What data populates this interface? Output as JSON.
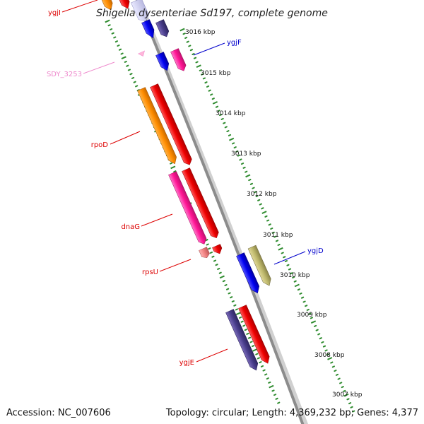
{
  "title": "Shigella dysenteriae Sd197, complete genome",
  "footer": {
    "accession": "Accession: NC_007606",
    "summary": "Topology: circular; Length: 4,369,232 bp; Genes: 4,377"
  },
  "ticks": [
    "3016 kbp",
    "3015 kbp",
    "3014 kbp",
    "3013 kbp",
    "3012 kbp",
    "3011 kbp",
    "3010 kbp",
    "3009 kbp",
    "3008 kbp",
    "3007 kbp"
  ],
  "genes": {
    "ygjI": "ygjI",
    "ygjF": "ygjF",
    "sdy3253": "SDY_3253",
    "rpoD": "rpoD",
    "dnaG": "dnaG",
    "rpsU": "rpsU",
    "ygjD": "ygjD",
    "ygjE": "ygjE"
  },
  "colors": {
    "backbone": "#8c8c8c",
    "tick_dots": "#2e8b2e",
    "red_label": "#dd0000",
    "blue_label": "#0000cc",
    "pink_label": "#ee88cc"
  }
}
